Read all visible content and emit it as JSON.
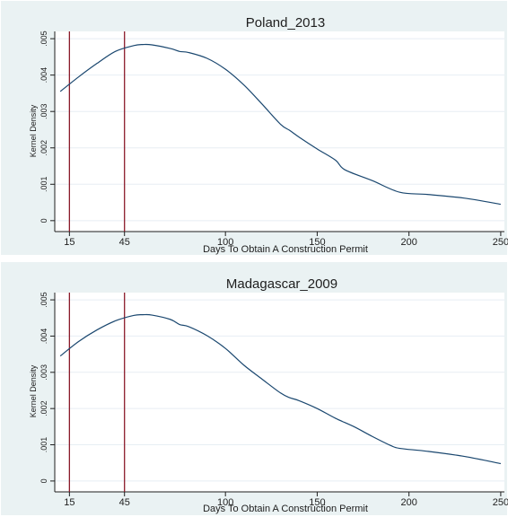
{
  "chart_data": [
    {
      "type": "line",
      "title": "Poland_2013",
      "xlabel": "Days To Obtain A Construction Permit",
      "ylabel": "Kernel Density",
      "xlim": [
        7,
        252
      ],
      "ylim": [
        -0.0003,
        0.0052
      ],
      "xticks": [
        15,
        45,
        100,
        150,
        200,
        250
      ],
      "xtick_labels": [
        "15",
        "45",
        "100",
        "150",
        "200",
        "250"
      ],
      "yticks": [
        0,
        0.001,
        0.002,
        0.003,
        0.004,
        0.005
      ],
      "ytick_labels": [
        "0",
        ".001",
        ".002",
        ".003",
        ".004",
        ".005"
      ],
      "vlines": [
        15,
        45
      ],
      "grid": "horizontal",
      "series": [
        {
          "x": [
            10,
            20,
            30,
            40,
            50,
            55,
            60,
            70,
            75,
            80,
            90,
            100,
            110,
            120,
            130,
            135,
            140,
            150,
            160,
            165,
            180,
            195,
            210,
            230,
            250
          ],
          "y": [
            0.00355,
            0.00395,
            0.00432,
            0.00465,
            0.00481,
            0.00484,
            0.00483,
            0.00473,
            0.00465,
            0.00462,
            0.00446,
            0.00416,
            0.00373,
            0.0032,
            0.00265,
            0.00248,
            0.0023,
            0.00197,
            0.00166,
            0.0014,
            0.0011,
            0.00078,
            0.00072,
            0.00062,
            0.00045
          ]
        }
      ],
      "colors": {
        "line": "#1a476f",
        "vline": "#8b1a2a",
        "grid": "#e7eef4"
      }
    },
    {
      "type": "line",
      "title": "Madagascar_2009",
      "xlabel": "Days To Obtain A Construction Permit",
      "ylabel": "Kernel Density",
      "xlim": [
        7,
        252
      ],
      "ylim": [
        -0.0003,
        0.0052
      ],
      "xticks": [
        15,
        45,
        100,
        150,
        200,
        250
      ],
      "xtick_labels": [
        "15",
        "45",
        "100",
        "150",
        "200",
        "250"
      ],
      "yticks": [
        0,
        0.001,
        0.002,
        0.003,
        0.004,
        0.005
      ],
      "ytick_labels": [
        "0",
        ".001",
        ".002",
        ".003",
        ".004",
        ".005"
      ],
      "vlines": [
        15,
        45
      ],
      "grid": "horizontal",
      "series": [
        {
          "x": [
            10,
            20,
            30,
            40,
            50,
            55,
            60,
            70,
            75,
            80,
            90,
            100,
            110,
            120,
            130,
            135,
            140,
            150,
            160,
            170,
            180,
            190,
            195,
            210,
            230,
            250
          ],
          "y": [
            0.00345,
            0.00385,
            0.00417,
            0.00442,
            0.00457,
            0.00459,
            0.00458,
            0.00446,
            0.00432,
            0.00426,
            0.00401,
            0.00366,
            0.0032,
            0.00281,
            0.00243,
            0.0023,
            0.00222,
            0.002,
            0.00173,
            0.0015,
            0.00123,
            0.00098,
            0.0009,
            0.00082,
            0.00068,
            0.00048
          ]
        }
      ],
      "colors": {
        "line": "#1a476f",
        "vline": "#8b1a2a",
        "grid": "#e7eef4"
      }
    }
  ]
}
